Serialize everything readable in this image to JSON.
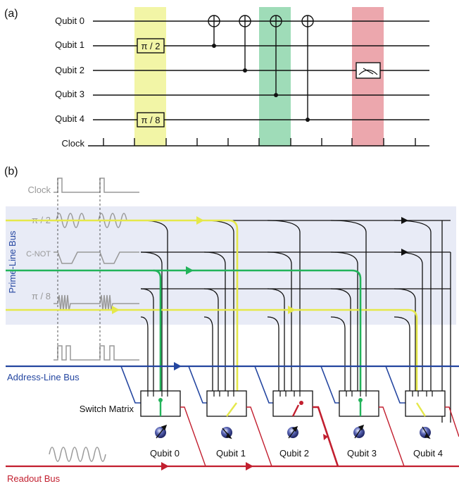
{
  "panel_a": {
    "label": "(a)",
    "qubits": [
      "Qubit 0",
      "Qubit 1",
      "Qubit 2",
      "Qubit 3",
      "Qubit 4"
    ],
    "clock_label": "Clock",
    "gate_pi2": "π / 2",
    "gate_pi8": "π / 8",
    "colors": {
      "yellow": "#f2f5a6",
      "green": "#9fdcb8",
      "red": "#eca7ad"
    }
  },
  "panel_b": {
    "label": "(b)",
    "signals": [
      "Clock",
      "π / 2",
      "C-NOT",
      "π / 8"
    ],
    "prime_bus": "Prime-Line Bus",
    "address_bus": "Address-Line Bus",
    "switch_matrix": "Switch Matrix",
    "readout_bus": "Readout Bus",
    "qubits": [
      "Qubit 0",
      "Qubit 1",
      "Qubit 2",
      "Qubit 3",
      "Qubit 4"
    ],
    "colors": {
      "band": "#e8ebf6",
      "yellow": "#e5e84a",
      "green": "#22b35a",
      "blue": "#2446a0",
      "red": "#c21f2f",
      "gray": "#999999"
    }
  }
}
